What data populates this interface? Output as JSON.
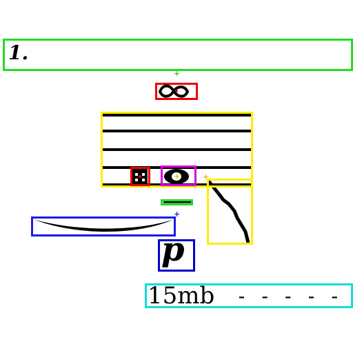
{
  "score": {
    "measure_number": "1.",
    "dynamic_mark": "p",
    "measure_label": "15mb",
    "dashes": "- - - - -"
  },
  "annotation_colors": {
    "measure_box": "#22dd22",
    "slur_box": "#1a1aee",
    "staff_box": "#ffee00",
    "note_box": "#ee0000",
    "notehead_box": "#dd00dd",
    "dynamic_box": "#0000cc",
    "text_box": "#11dddd"
  },
  "icons": [
    "turn-ornament-icon",
    "sharp-accidental-icon",
    "whole-notehead-icon",
    "tie-icon",
    "slur-icon",
    "stem-icon"
  ]
}
